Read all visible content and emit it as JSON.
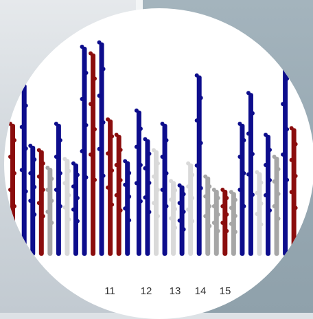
{
  "chart_data": {
    "type": "scatter",
    "subtype": "manhattan",
    "title": "",
    "xlabel": "",
    "ylabel": "",
    "x_tick_labels": [
      "11",
      "12",
      "13",
      "14",
      "15"
    ],
    "colors": {
      "blue": "#0d0d8c",
      "red": "#8b0d0d",
      "grey": "#a6a6a6",
      "lightgrey": "#d9d9d9"
    },
    "y_range": [
      0,
      1
    ],
    "columns": [
      {
        "x": 0.0,
        "top": 0.6,
        "color": "red"
      },
      {
        "x": 0.04,
        "top": 0.78,
        "color": "blue"
      },
      {
        "x": 0.07,
        "top": 0.5,
        "color": "blue"
      },
      {
        "x": 0.1,
        "top": 0.48,
        "color": "red"
      },
      {
        "x": 0.13,
        "top": 0.4,
        "color": "grey"
      },
      {
        "x": 0.16,
        "top": 0.6,
        "color": "blue"
      },
      {
        "x": 0.19,
        "top": 0.44,
        "color": "lightgrey"
      },
      {
        "x": 0.22,
        "top": 0.42,
        "color": "blue"
      },
      {
        "x": 0.25,
        "top": 0.95,
        "color": "blue"
      },
      {
        "x": 0.28,
        "top": 0.92,
        "color": "red"
      },
      {
        "x": 0.31,
        "top": 0.97,
        "color": "blue"
      },
      {
        "x": 0.34,
        "top": 0.62,
        "color": "red"
      },
      {
        "x": 0.37,
        "top": 0.55,
        "color": "red"
      },
      {
        "x": 0.4,
        "top": 0.43,
        "color": "blue"
      },
      {
        "x": 0.44,
        "top": 0.66,
        "color": "blue"
      },
      {
        "x": 0.47,
        "top": 0.53,
        "color": "blue"
      },
      {
        "x": 0.5,
        "top": 0.48,
        "color": "lightgrey"
      },
      {
        "x": 0.53,
        "top": 0.6,
        "color": "blue"
      },
      {
        "x": 0.56,
        "top": 0.34,
        "color": "lightgrey"
      },
      {
        "x": 0.59,
        "top": 0.32,
        "color": "blue"
      },
      {
        "x": 0.62,
        "top": 0.42,
        "color": "lightgrey"
      },
      {
        "x": 0.65,
        "top": 0.82,
        "color": "blue"
      },
      {
        "x": 0.68,
        "top": 0.36,
        "color": "grey"
      },
      {
        "x": 0.71,
        "top": 0.3,
        "color": "grey"
      },
      {
        "x": 0.74,
        "top": 0.3,
        "color": "red"
      },
      {
        "x": 0.77,
        "top": 0.29,
        "color": "grey"
      },
      {
        "x": 0.8,
        "top": 0.6,
        "color": "blue"
      },
      {
        "x": 0.83,
        "top": 0.74,
        "color": "blue"
      },
      {
        "x": 0.86,
        "top": 0.38,
        "color": "lightgrey"
      },
      {
        "x": 0.89,
        "top": 0.55,
        "color": "blue"
      },
      {
        "x": 0.92,
        "top": 0.45,
        "color": "grey"
      },
      {
        "x": 0.95,
        "top": 0.92,
        "color": "blue"
      },
      {
        "x": 0.98,
        "top": 0.58,
        "color": "red"
      }
    ]
  }
}
